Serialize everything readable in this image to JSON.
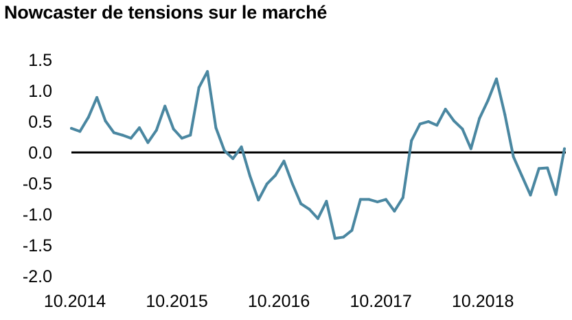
{
  "chart_data": {
    "type": "line",
    "title": "Nowcaster de tensions sur le marché",
    "xlabel": "",
    "ylabel": "",
    "ylim": [
      -2.0,
      1.5
    ],
    "yticks": [
      "1.5",
      "1.0",
      "0.5",
      "0.0",
      "-0.5",
      "-1.0",
      "-1.5",
      "-2.0"
    ],
    "ytick_values": [
      1.5,
      1.0,
      0.5,
      0.0,
      -0.5,
      -1.0,
      -1.5,
      -2.0
    ],
    "xticks": [
      "10.2014",
      "10.2015",
      "10.2016",
      "10.2017",
      "10.2018"
    ],
    "xtick_index": [
      0,
      12,
      24,
      36,
      48
    ],
    "grid": false,
    "legend": "none",
    "line_color": "#4a87a1",
    "zero_line_color": "#000000",
    "series": [
      {
        "values": [
          0.39,
          0.34,
          0.57,
          0.89,
          0.51,
          0.32,
          0.28,
          0.23,
          0.4,
          0.16,
          0.36,
          0.75,
          0.38,
          0.23,
          0.28,
          1.05,
          1.31,
          0.4,
          0.03,
          -0.1,
          0.09,
          -0.38,
          -0.77,
          -0.51,
          -0.37,
          -0.14,
          -0.51,
          -0.83,
          -0.92,
          -1.07,
          -0.79,
          -1.39,
          -1.37,
          -1.26,
          -0.76,
          -0.76,
          -0.8,
          -0.76,
          -0.95,
          -0.73,
          0.19,
          0.46,
          0.5,
          0.44,
          0.7,
          0.51,
          0.38,
          0.06,
          0.55,
          0.84,
          1.19,
          0.61,
          -0.07,
          -0.38,
          -0.69,
          -0.26,
          -0.25,
          -0.68,
          0.06
        ]
      }
    ]
  }
}
